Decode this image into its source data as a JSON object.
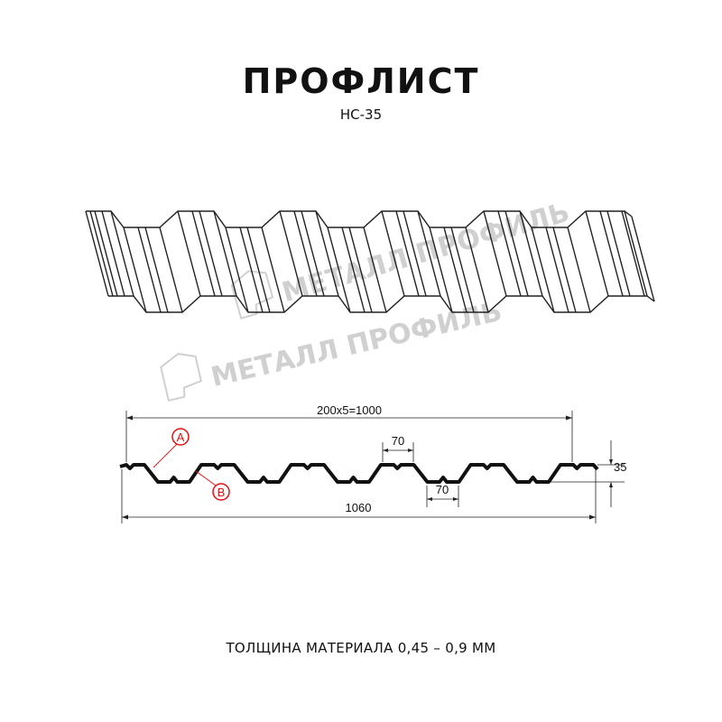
{
  "header": {
    "title": "ПРОФЛИСТ",
    "subtitle": "НС-35"
  },
  "watermark": {
    "text": "МЕТАЛЛ ПРОФИЛЬ",
    "icon": "metall-profil-logo-icon",
    "color": "#d0d0d0"
  },
  "section": {
    "dimensions": {
      "pitch": "200x5=1000",
      "top_width": "70",
      "bottom_width": "70",
      "total_width": "1060",
      "height": "35"
    },
    "labels": {
      "a": "A",
      "b": "B"
    },
    "label_color": "#e01010"
  },
  "footer": {
    "thickness": "ТОЛЩИНА МАТЕРИАЛА 0,45 – 0,9 ММ"
  }
}
